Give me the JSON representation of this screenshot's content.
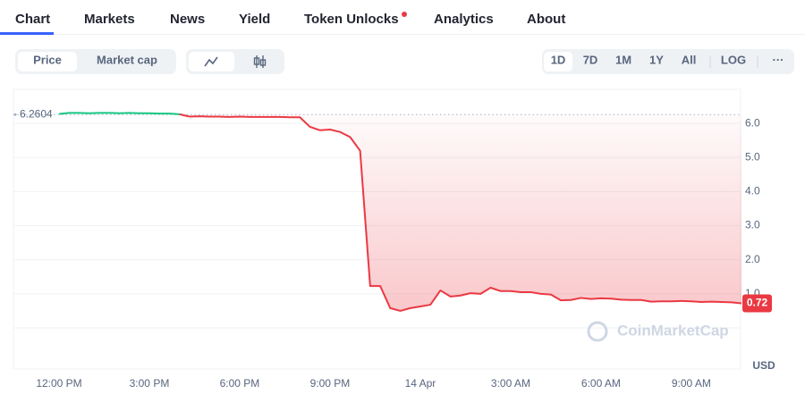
{
  "nav": {
    "tabs": [
      "Chart",
      "Markets",
      "News",
      "Yield",
      "Token Unlocks",
      "Analytics",
      "About"
    ]
  },
  "toolbar": {
    "metric_tabs": [
      "Price",
      "Market cap"
    ],
    "ranges": [
      "1D",
      "7D",
      "1M",
      "1Y",
      "All",
      "LOG"
    ],
    "more": "···"
  },
  "chart_data": {
    "type": "line",
    "categories": [
      "12:00 PM",
      null,
      null,
      null,
      null,
      null,
      null,
      null,
      null,
      "3:00 PM",
      null,
      null,
      null,
      null,
      null,
      null,
      null,
      null,
      "6:00 PM",
      null,
      null,
      null,
      null,
      null,
      null,
      null,
      null,
      "9:00 PM",
      null,
      null,
      null,
      null,
      null,
      null,
      null,
      null,
      "14 Apr",
      null,
      null,
      null,
      null,
      null,
      null,
      null,
      null,
      "3:00 AM",
      null,
      null,
      null,
      null,
      null,
      null,
      null,
      null,
      "6:00 AM",
      null,
      null,
      null,
      null,
      null,
      null,
      null,
      null,
      "9:00 AM",
      null,
      null,
      null,
      null,
      null
    ],
    "values": [
      6.28,
      6.31,
      6.31,
      6.3,
      6.31,
      6.31,
      6.3,
      6.31,
      6.3,
      6.3,
      6.29,
      6.29,
      6.27,
      6.2,
      6.21,
      6.2,
      6.2,
      6.19,
      6.2,
      6.19,
      6.19,
      6.19,
      6.19,
      6.18,
      6.18,
      5.9,
      5.8,
      5.82,
      5.75,
      5.6,
      5.2,
      1.23,
      1.23,
      0.58,
      0.5,
      0.58,
      0.63,
      0.68,
      1.1,
      0.92,
      0.95,
      1.02,
      1.0,
      1.18,
      1.08,
      1.08,
      1.05,
      1.05,
      1.0,
      0.98,
      0.81,
      0.82,
      0.88,
      0.85,
      0.87,
      0.86,
      0.83,
      0.82,
      0.82,
      0.77,
      0.78,
      0.78,
      0.79,
      0.78,
      0.76,
      0.77,
      0.76,
      0.75,
      0.72
    ],
    "up_color": "#16c784",
    "down_color": "#ea3943",
    "reference": 6.2604,
    "current": 0.72,
    "ylim": [
      0,
      7
    ],
    "yticks": [
      {
        "value": 1,
        "label": "1.0"
      },
      {
        "value": 2,
        "label": "2.0"
      },
      {
        "value": 3,
        "label": "3.0"
      },
      {
        "value": 4,
        "label": "4.0"
      },
      {
        "value": 5,
        "label": "5.0"
      },
      {
        "value": 6,
        "label": "6.0"
      }
    ],
    "grid": true,
    "unit": "USD",
    "watermark": "CoinMarketCap"
  }
}
